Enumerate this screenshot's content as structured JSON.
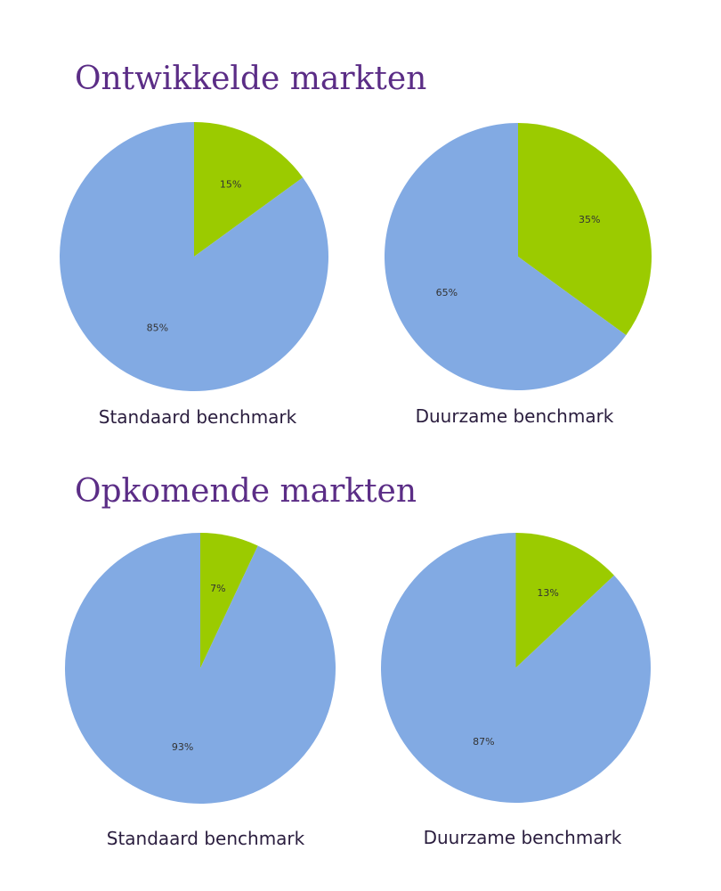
{
  "sections": [
    {
      "title": "Ontwikkelde markten"
    },
    {
      "title": "Opkomende markten"
    }
  ],
  "colors": {
    "sustainable": "#9bcb00",
    "other": "#82aae3",
    "title": "#5b2d86",
    "caption": "#2a1d3e"
  },
  "chart_data": [
    {
      "type": "pie",
      "section": "Ontwikkelde markten",
      "title": "Standaard benchmark",
      "slices": [
        {
          "label": "15%",
          "value": 15
        },
        {
          "label": "85%",
          "value": 85
        }
      ]
    },
    {
      "type": "pie",
      "section": "Ontwikkelde markten",
      "title": "Duurzame benchmark",
      "slices": [
        {
          "label": "35%",
          "value": 35
        },
        {
          "label": "65%",
          "value": 65
        }
      ]
    },
    {
      "type": "pie",
      "section": "Opkomende markten",
      "title": "Standaard benchmark",
      "slices": [
        {
          "label": "7%",
          "value": 7
        },
        {
          "label": "93%",
          "value": 93
        }
      ]
    },
    {
      "type": "pie",
      "section": "Opkomende markten",
      "title": "Duurzame benchmark",
      "slices": [
        {
          "label": "13%",
          "value": 13
        },
        {
          "label": "87%",
          "value": 87
        }
      ]
    }
  ]
}
